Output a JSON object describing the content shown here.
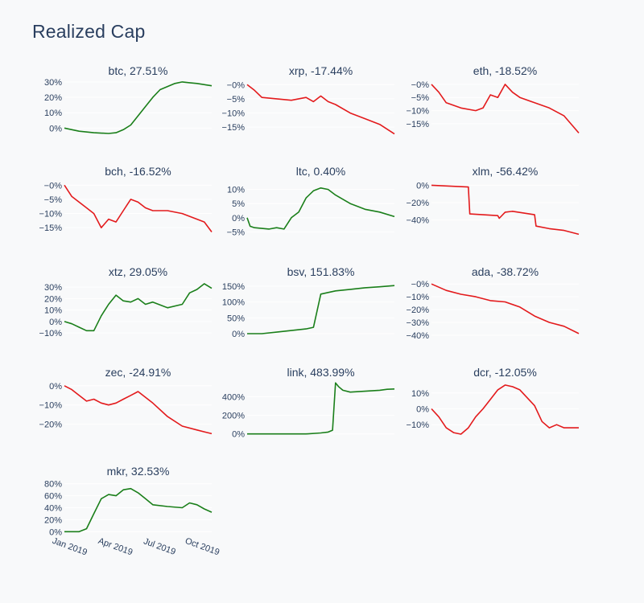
{
  "page": {
    "title": "Realized Cap"
  },
  "colors": {
    "positive": "#1a7f1a",
    "negative": "#e31a1c",
    "background": "#f8f9fa",
    "grid": "#ffffff",
    "text": "#2a3f5f"
  },
  "chart_data": [
    {
      "type": "line",
      "title": "btc, 27.51%",
      "color": "#1a7f1a",
      "ylim": [
        -4,
        31
      ],
      "yticks": [
        0,
        10,
        20,
        30
      ],
      "yticklabels": [
        "0%",
        "10%",
        "20%",
        "30%"
      ],
      "x": [
        0,
        0.1,
        0.2,
        0.3,
        0.35,
        0.4,
        0.45,
        0.55,
        0.6,
        0.65,
        0.75,
        0.8,
        0.85,
        0.9,
        1.0
      ],
      "values": [
        0,
        -2,
        -3,
        -3.5,
        -3,
        -1,
        2,
        14,
        20,
        25,
        29,
        30,
        29.5,
        29,
        27.5
      ]
    },
    {
      "type": "line",
      "title": "xrp, -17.44%",
      "color": "#e31a1c",
      "ylim": [
        -17.5,
        1.5
      ],
      "yticks": [
        0,
        -5,
        -10,
        -15
      ],
      "yticklabels": [
        "−0%",
        "−5%",
        "−10%",
        "−15%"
      ],
      "x": [
        0,
        0.05,
        0.1,
        0.2,
        0.3,
        0.4,
        0.45,
        0.5,
        0.55,
        0.6,
        0.7,
        0.8,
        0.9,
        1.0
      ],
      "values": [
        0,
        -2,
        -4.5,
        -5,
        -5.5,
        -4.5,
        -6,
        -4,
        -6,
        -7,
        -10,
        -12,
        -14,
        -17.4
      ]
    },
    {
      "type": "line",
      "title": "eth, -18.52%",
      "color": "#e31a1c",
      "ylim": [
        -19,
        1.5
      ],
      "yticks": [
        0,
        -5,
        -10,
        -15
      ],
      "yticklabels": [
        "−0%",
        "−5%",
        "−10%",
        "−15%"
      ],
      "x": [
        0,
        0.05,
        0.1,
        0.2,
        0.3,
        0.35,
        0.4,
        0.45,
        0.5,
        0.55,
        0.6,
        0.7,
        0.8,
        0.9,
        1.0
      ],
      "values": [
        0,
        -3,
        -7,
        -9,
        -10,
        -9,
        -4,
        -5,
        0,
        -3,
        -5,
        -7,
        -9,
        -12,
        -18.5
      ]
    },
    {
      "type": "line",
      "title": "bch, -16.52%",
      "color": "#e31a1c",
      "ylim": [
        -17.5,
        1.5
      ],
      "yticks": [
        0,
        -5,
        -10,
        -15
      ],
      "yticklabels": [
        "−0%",
        "−5%",
        "−10%",
        "−15%"
      ],
      "x": [
        0,
        0.05,
        0.15,
        0.2,
        0.25,
        0.3,
        0.35,
        0.4,
        0.45,
        0.5,
        0.55,
        0.6,
        0.7,
        0.8,
        0.9,
        0.95,
        1.0
      ],
      "values": [
        0,
        -4,
        -8,
        -10,
        -15,
        -12,
        -13,
        -9,
        -5,
        -6,
        -8,
        -9,
        -9,
        -10,
        -12,
        -13,
        -16.5
      ]
    },
    {
      "type": "line",
      "title": "ltc, 0.40%",
      "color": "#1a7f1a",
      "ylim": [
        -6,
        13
      ],
      "yticks": [
        10,
        5,
        0,
        -5
      ],
      "yticklabels": [
        "10%",
        "5%",
        "0%",
        "−5%"
      ],
      "x": [
        0,
        0.02,
        0.05,
        0.15,
        0.2,
        0.25,
        0.3,
        0.35,
        0.4,
        0.45,
        0.5,
        0.55,
        0.6,
        0.7,
        0.8,
        0.9,
        1.0
      ],
      "values": [
        0,
        -3,
        -3.5,
        -4,
        -3.5,
        -4,
        0,
        2,
        7,
        9.5,
        10.5,
        10,
        8,
        5,
        3,
        2,
        0.4
      ]
    },
    {
      "type": "line",
      "title": "xlm, -56.42%",
      "color": "#e31a1c",
      "ylim": [
        -57,
        5
      ],
      "yticks": [
        0,
        -20,
        -40
      ],
      "yticklabels": [
        "0%",
        "−20%",
        "−40%"
      ],
      "x": [
        0,
        0.25,
        0.26,
        0.45,
        0.46,
        0.5,
        0.55,
        0.7,
        0.71,
        0.8,
        0.9,
        1.0
      ],
      "values": [
        0,
        -2,
        -33,
        -35,
        -38,
        -31,
        -30,
        -34,
        -47,
        -50,
        -52,
        -56.4
      ]
    },
    {
      "type": "line",
      "title": "xtz, 29.05%",
      "color": "#1a7f1a",
      "ylim": [
        -12,
        35
      ],
      "yticks": [
        30,
        20,
        10,
        0,
        -10
      ],
      "yticklabels": [
        "30%",
        "20%",
        "10%",
        "0%",
        "−10%"
      ],
      "x": [
        0,
        0.05,
        0.1,
        0.15,
        0.2,
        0.25,
        0.3,
        0.35,
        0.4,
        0.45,
        0.5,
        0.55,
        0.6,
        0.7,
        0.8,
        0.85,
        0.9,
        0.95,
        1.0
      ],
      "values": [
        0,
        -2,
        -5,
        -8,
        -8,
        5,
        15,
        23,
        18,
        17,
        20,
        15,
        17,
        12,
        15,
        25,
        28,
        33,
        29
      ]
    },
    {
      "type": "line",
      "title": "bsv, 151.83%",
      "color": "#1a7f1a",
      "ylim": [
        -5,
        165
      ],
      "yticks": [
        150,
        100,
        50,
        0
      ],
      "yticklabels": [
        "150%",
        "100%",
        "50%",
        "0%"
      ],
      "x": [
        0,
        0.1,
        0.2,
        0.3,
        0.4,
        0.45,
        0.5,
        0.55,
        0.6,
        0.7,
        0.8,
        0.9,
        1.0
      ],
      "values": [
        0,
        0,
        5,
        10,
        15,
        20,
        125,
        130,
        135,
        140,
        145,
        148,
        151.8
      ]
    },
    {
      "type": "line",
      "title": "ada, -38.72%",
      "color": "#e31a1c",
      "ylim": [
        -40,
        2
      ],
      "yticks": [
        0,
        -10,
        -20,
        -30,
        -40
      ],
      "yticklabels": [
        "−0%",
        "−10%",
        "−20%",
        "−30%",
        "−40%"
      ],
      "x": [
        0,
        0.1,
        0.2,
        0.3,
        0.4,
        0.5,
        0.6,
        0.7,
        0.8,
        0.9,
        1.0
      ],
      "values": [
        0,
        -5,
        -8,
        -10,
        -13,
        -14,
        -18,
        -25,
        -30,
        -33,
        -38.7
      ]
    },
    {
      "type": "line",
      "title": "zec, -24.91%",
      "color": "#e31a1c",
      "ylim": [
        -26,
        2
      ],
      "yticks": [
        0,
        -10,
        -20
      ],
      "yticklabels": [
        "0%",
        "−10%",
        "−20%"
      ],
      "x": [
        0,
        0.05,
        0.1,
        0.15,
        0.2,
        0.25,
        0.3,
        0.35,
        0.4,
        0.45,
        0.5,
        0.6,
        0.7,
        0.8,
        0.9,
        1.0
      ],
      "values": [
        0,
        -2,
        -5,
        -8,
        -7,
        -9,
        -10,
        -9,
        -7,
        -5,
        -3,
        -9,
        -16,
        -21,
        -23,
        -24.9
      ]
    },
    {
      "type": "line",
      "title": "link, 483.99%",
      "color": "#1a7f1a",
      "ylim": [
        -20,
        560
      ],
      "yticks": [
        400,
        200,
        0
      ],
      "yticklabels": [
        "400%",
        "200%",
        "0%"
      ],
      "x": [
        0,
        0.2,
        0.3,
        0.4,
        0.5,
        0.55,
        0.58,
        0.6,
        0.62,
        0.65,
        0.7,
        0.8,
        0.9,
        0.95,
        1.0
      ],
      "values": [
        0,
        0,
        0,
        0,
        10,
        20,
        40,
        550,
        510,
        470,
        450,
        460,
        470,
        480,
        484
      ]
    },
    {
      "type": "line",
      "title": "dcr, -12.05%",
      "color": "#e31a1c",
      "ylim": [
        -17,
        17
      ],
      "yticks": [
        10,
        0,
        -10
      ],
      "yticklabels": [
        "10%",
        "0%",
        "−10%"
      ],
      "x": [
        0,
        0.05,
        0.1,
        0.15,
        0.2,
        0.25,
        0.3,
        0.35,
        0.4,
        0.45,
        0.5,
        0.55,
        0.6,
        0.7,
        0.75,
        0.8,
        0.85,
        0.9,
        1.0
      ],
      "values": [
        0,
        -5,
        -12,
        -15,
        -16,
        -12,
        -5,
        0,
        6,
        12,
        15,
        14,
        12,
        2,
        -8,
        -12,
        -10,
        -12,
        -12
      ]
    },
    {
      "type": "line",
      "title": "mkr, 32.53%",
      "color": "#1a7f1a",
      "ylim": [
        -5,
        85
      ],
      "yticks": [
        80,
        60,
        40,
        20,
        0
      ],
      "yticklabels": [
        "80%",
        "60%",
        "40%",
        "20%",
        "0%"
      ],
      "x": [
        0,
        0.05,
        0.1,
        0.15,
        0.2,
        0.25,
        0.3,
        0.35,
        0.4,
        0.45,
        0.5,
        0.55,
        0.6,
        0.7,
        0.8,
        0.85,
        0.9,
        0.95,
        1.0
      ],
      "values": [
        0,
        0,
        0,
        5,
        30,
        55,
        62,
        60,
        70,
        72,
        65,
        55,
        45,
        42,
        40,
        48,
        45,
        38,
        32.5
      ],
      "xticklabels": [
        "Jan 2019",
        "Apr 2019",
        "Jul 2019",
        "Oct 2019"
      ]
    }
  ]
}
